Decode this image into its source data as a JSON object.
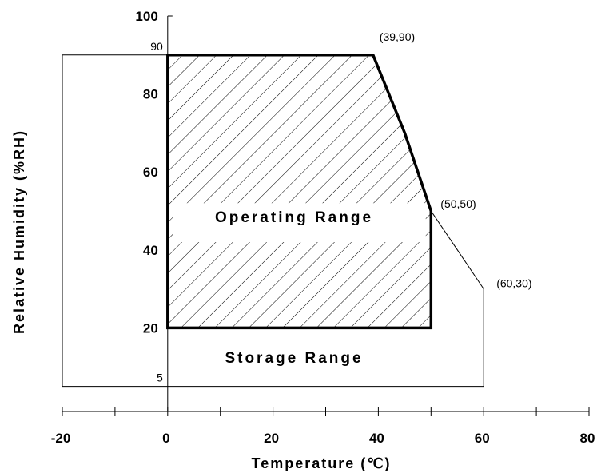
{
  "chart_data": {
    "type": "area",
    "title": "",
    "xlabel": "Temperature (℃)",
    "ylabel": "Relative Humidity (%RH)",
    "xlim": [
      -20,
      80
    ],
    "ylim": [
      0,
      100
    ],
    "x_ticks": [
      -20,
      0,
      20,
      40,
      60,
      80
    ],
    "x_minor_ticks": [
      -10,
      10,
      30,
      50,
      70
    ],
    "y_ticks": [
      20,
      40,
      60,
      80,
      100
    ],
    "y_extra_labels": [
      5,
      90
    ],
    "grid": false,
    "regions": [
      {
        "name": "Storage Range",
        "fill": "none",
        "points": [
          [
            -20,
            5
          ],
          [
            -20,
            90
          ],
          [
            39,
            90
          ],
          [
            42,
            80
          ],
          [
            45,
            70
          ],
          [
            50,
            50
          ],
          [
            55,
            40
          ],
          [
            60,
            30
          ],
          [
            60,
            5
          ]
        ]
      },
      {
        "name": "Operating Range",
        "fill": "hatched",
        "points": [
          [
            0,
            20
          ],
          [
            0,
            90
          ],
          [
            39,
            90
          ],
          [
            42,
            80
          ],
          [
            45,
            70
          ],
          [
            50,
            50
          ],
          [
            50,
            20
          ]
        ]
      }
    ],
    "annotations": [
      {
        "text": "(39,90)",
        "x": 39,
        "y": 90
      },
      {
        "text": "(50,50)",
        "x": 50,
        "y": 50
      },
      {
        "text": "(60,30)",
        "x": 60,
        "y": 30
      }
    ]
  }
}
